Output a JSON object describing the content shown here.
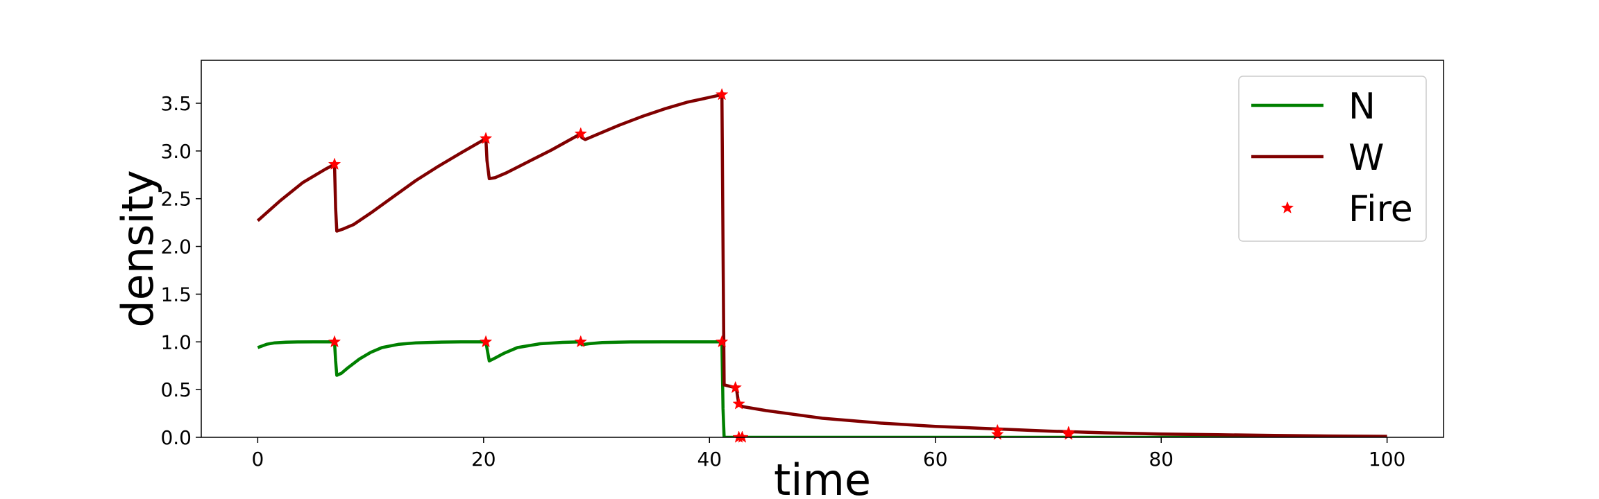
{
  "chart_data": {
    "type": "line",
    "xlabel": "time",
    "ylabel": "density",
    "xlim": [
      -5,
      105
    ],
    "ylim": [
      0,
      3.95
    ],
    "xticks": [
      0,
      20,
      40,
      60,
      80,
      100
    ],
    "xtick_labels": [
      "0",
      "20",
      "40",
      "60",
      "80",
      "100"
    ],
    "yticks": [
      0.0,
      0.5,
      1.0,
      1.5,
      2.0,
      2.5,
      3.0,
      3.5
    ],
    "ytick_labels": [
      "0.0",
      "0.5",
      "1.0",
      "1.5",
      "2.0",
      "2.5",
      "3.0",
      "3.5"
    ],
    "grid": false,
    "legend": {
      "position": "top-right",
      "entries": [
        {
          "label": "N",
          "color": "#008000",
          "kind": "line"
        },
        {
          "label": "W",
          "color": "#800000",
          "kind": "line"
        },
        {
          "label": "Fire",
          "color": "#ff0000",
          "kind": "star"
        }
      ]
    },
    "series": [
      {
        "name": "N",
        "color": "#008000",
        "x": [
          0,
          0.8,
          1.5,
          2.5,
          3.5,
          5,
          6.8,
          6.9,
          7.0,
          7.4,
          8,
          9,
          10,
          11,
          12.5,
          14,
          16,
          18,
          20.2,
          20.35,
          20.5,
          21,
          21.8,
          23,
          25,
          27,
          28.6,
          28.7,
          29.3,
          30.5,
          33,
          36,
          39,
          41.1,
          41.2,
          41.3,
          42,
          50,
          60,
          70,
          80,
          90,
          100
        ],
        "y": [
          0.94,
          0.975,
          0.99,
          0.997,
          0.999,
          1.0,
          1.0,
          0.8,
          0.65,
          0.67,
          0.73,
          0.82,
          0.89,
          0.94,
          0.975,
          0.99,
          0.997,
          1.0,
          1.0,
          0.9,
          0.8,
          0.83,
          0.88,
          0.94,
          0.98,
          0.995,
          1.0,
          0.97,
          0.98,
          0.993,
          0.999,
          1.0,
          1.0,
          1.0,
          0.3,
          0.0,
          0.0,
          0.0,
          0.0,
          0.0,
          0.0,
          0.0,
          0.0
        ]
      },
      {
        "name": "W",
        "color": "#800000",
        "x": [
          0,
          2,
          4,
          6,
          6.8,
          6.9,
          7.0,
          7.5,
          8.5,
          10,
          12,
          14,
          16,
          18,
          20.2,
          20.3,
          20.5,
          21,
          22,
          24,
          26,
          28.6,
          28.7,
          29,
          30,
          32,
          34,
          36,
          38,
          41.1,
          41.2,
          41.3,
          42.3,
          42.4,
          42.6,
          42.8,
          43,
          45,
          50,
          55,
          60,
          65,
          70,
          75,
          80,
          85,
          90,
          95,
          100
        ],
        "y": [
          2.27,
          2.48,
          2.67,
          2.81,
          2.86,
          2.4,
          2.16,
          2.18,
          2.23,
          2.35,
          2.52,
          2.69,
          2.84,
          2.98,
          3.13,
          2.9,
          2.71,
          2.72,
          2.77,
          2.89,
          3.01,
          3.18,
          3.14,
          3.12,
          3.17,
          3.27,
          3.36,
          3.44,
          3.51,
          3.59,
          2.0,
          0.55,
          0.52,
          0.5,
          0.34,
          0.33,
          0.32,
          0.28,
          0.2,
          0.15,
          0.115,
          0.09,
          0.065,
          0.047,
          0.035,
          0.027,
          0.02,
          0.014,
          0.01
        ]
      },
      {
        "name": "Fire",
        "color": "#ff0000",
        "marker": "star",
        "x": [
          6.8,
          6.8,
          20.2,
          20.2,
          28.6,
          28.6,
          41.1,
          41.1,
          42.3,
          42.6,
          42.6,
          42.9,
          65.5,
          65.5,
          71.8,
          71.8
        ],
        "y": [
          2.86,
          1.0,
          3.13,
          1.0,
          3.18,
          1.0,
          3.59,
          1.0,
          0.52,
          0.35,
          0.0,
          0.0,
          0.07,
          0.03,
          0.05,
          0.03
        ]
      }
    ]
  }
}
